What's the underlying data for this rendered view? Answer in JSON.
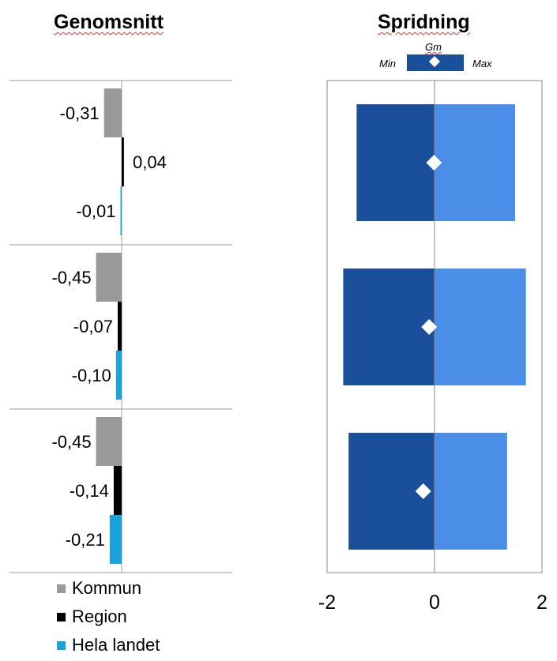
{
  "titles": {
    "left": "Genomsnitt",
    "right": "Spridning"
  },
  "spread_key": {
    "gm": "Gm",
    "min": "Min",
    "max": "Max"
  },
  "legend": {
    "kommun": "Kommun",
    "region": "Region",
    "landet": "Hela landet"
  },
  "colors": {
    "kommun": "#999999",
    "region": "#000000",
    "landet": "#1aa3d9",
    "spread_min": "#1a4f9c",
    "spread_max": "#4a8ee8",
    "gm_marker": "#ffffff"
  },
  "chart_data": [
    {
      "type": "bar",
      "title": "Genomsnitt",
      "groups": 3,
      "series": [
        {
          "name": "Kommun",
          "values": [
            -0.31,
            -0.45,
            -0.45
          ],
          "labels": [
            "-0,31",
            "-0,45",
            "-0,45"
          ]
        },
        {
          "name": "Region",
          "values": [
            0.04,
            -0.07,
            -0.14
          ],
          "labels": [
            "0,04",
            "-0,07",
            "-0,14"
          ]
        },
        {
          "name": "Hela landet",
          "values": [
            -0.01,
            -0.1,
            -0.21
          ],
          "labels": [
            "-0,01",
            "-0,10",
            "-0,21"
          ]
        }
      ]
    },
    {
      "type": "bar",
      "title": "Spridning",
      "xlim": [
        -2,
        2
      ],
      "ticks": [
        -2,
        0,
        2
      ],
      "tick_labels": [
        "-2",
        "0",
        "2"
      ],
      "grid": false,
      "rows": [
        {
          "min": -1.45,
          "max": 1.5,
          "gm": -0.01
        },
        {
          "min": -1.7,
          "max": 1.7,
          "gm": -0.1
        },
        {
          "min": -1.6,
          "max": 1.35,
          "gm": -0.21
        }
      ]
    }
  ]
}
